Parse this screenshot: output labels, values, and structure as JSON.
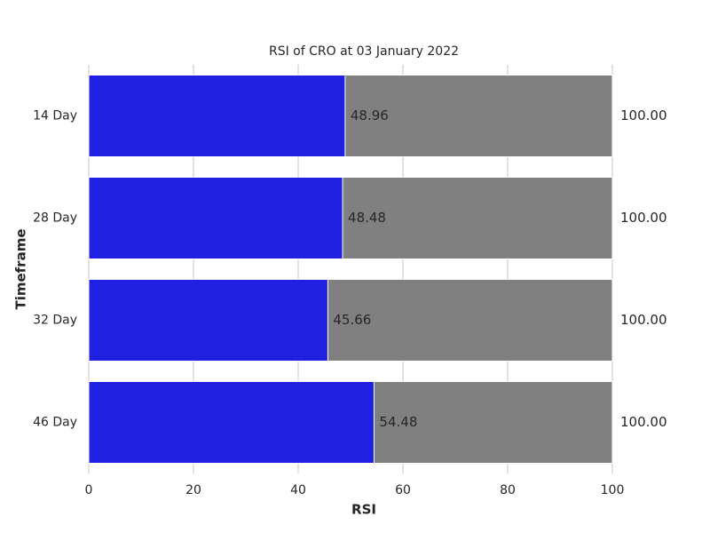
{
  "chart_data": {
    "type": "bar",
    "orientation": "horizontal",
    "title": "RSI of CRO at 03 January 2022",
    "x_label": "RSI",
    "y_label": "Timeframe",
    "categories": [
      "14 Day",
      "28 Day",
      "32 Day",
      "46 Day"
    ],
    "series": [
      {
        "color": "#808080",
        "values": [
          100,
          100,
          100,
          100
        ],
        "value_labels": [
          "100.00",
          "100.00",
          "100.00",
          "100.00"
        ]
      },
      {
        "color": "#2020e0",
        "values": [
          48.96,
          48.48,
          45.66,
          54.48
        ]
      }
    ],
    "xlim": [
      0,
      100
    ],
    "xticks": [
      0,
      20,
      40,
      60,
      80,
      100
    ],
    "grid": true
  }
}
